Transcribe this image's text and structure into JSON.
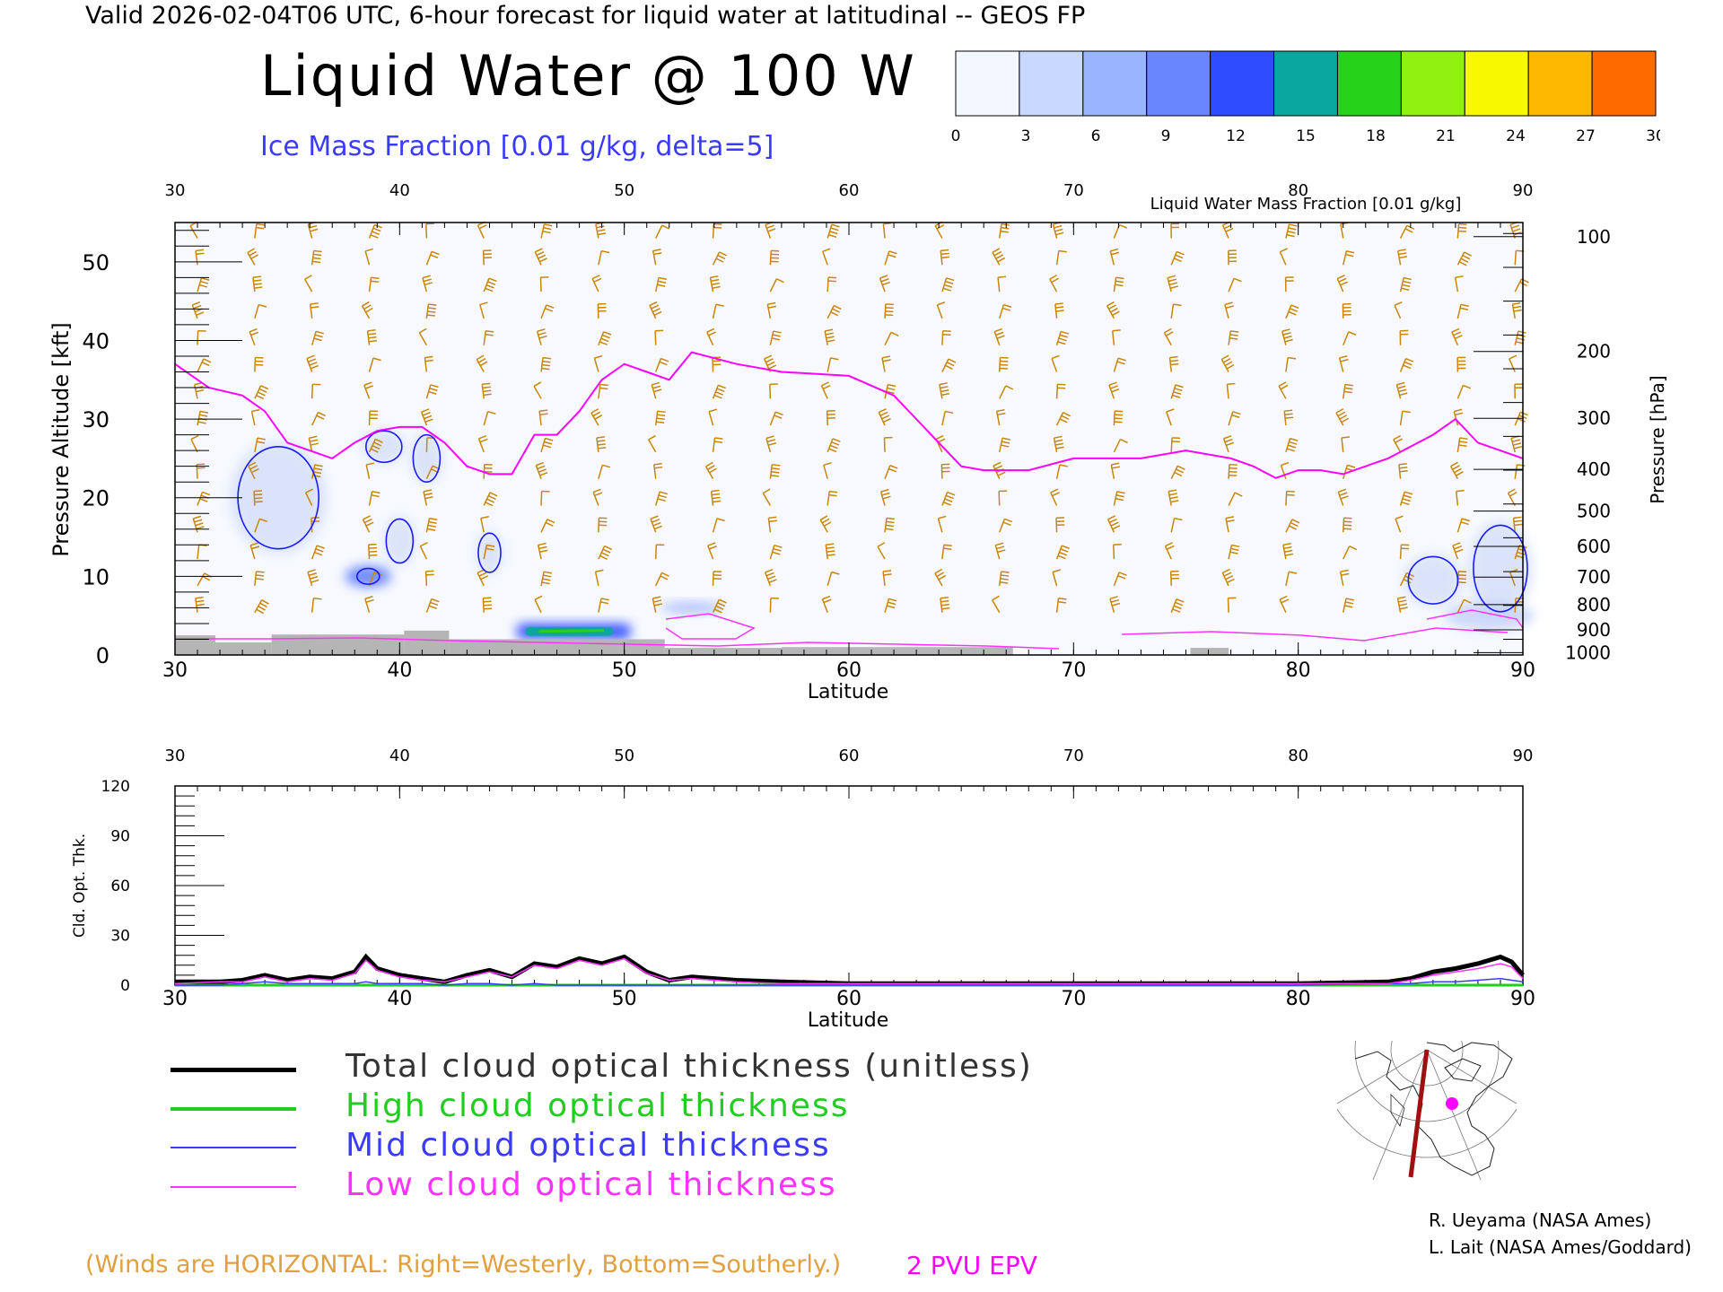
{
  "header": {
    "line": "Valid 2026-02-04T06 UTC, 6-hour forecast for liquid water at latitudinal -- GEOS FP",
    "title": "Liquid Water @ 100 W",
    "ice_note": "Ice Mass Fraction [0.01 g/kg, delta=5]"
  },
  "colorbar": {
    "ticks": [
      "0",
      "3",
      "6",
      "9",
      "12",
      "15",
      "18",
      "21",
      "24",
      "27",
      "30"
    ],
    "colors": [
      "#f4f7ff",
      "#c8d8ff",
      "#9ab4ff",
      "#6a86ff",
      "#2f4cff",
      "#0aa6a0",
      "#27d21a",
      "#90f010",
      "#f8f800",
      "#ffb800",
      "#ff6a00"
    ],
    "label": "Liquid Water Mass Fraction [0.01 g/kg]"
  },
  "chart_data": [
    {
      "type": "heatmap",
      "xlabel": "Latitude",
      "ylabel": "Pressure Altitude [kft]",
      "y2label": "Pressure [hPa]",
      "xlim": [
        30,
        90
      ],
      "ylim": [
        0,
        55
      ],
      "x_ticks": [
        "30",
        "40",
        "50",
        "60",
        "70",
        "80",
        "90"
      ],
      "y_ticks": [
        "0",
        "10",
        "20",
        "30",
        "40",
        "50"
      ],
      "pressure_ticks": [
        {
          "label": "100",
          "kft": 53.2
        },
        {
          "label": "200",
          "kft": 38.6
        },
        {
          "label": "300",
          "kft": 30.1
        },
        {
          "label": "400",
          "kft": 23.6
        },
        {
          "label": "500",
          "kft": 18.3
        },
        {
          "label": "600",
          "kft": 13.8
        },
        {
          "label": "700",
          "kft": 9.9
        },
        {
          "label": "800",
          "kft": 6.4
        },
        {
          "label": "900",
          "kft": 3.2
        },
        {
          "label": "1000",
          "kft": 0.3
        }
      ],
      "liquid_water_band": {
        "lat_start": 45.2,
        "lat_end": 50.3,
        "kft_center": 3.0
      },
      "ice_contours": [
        {
          "lat": 34.6,
          "kft": 20,
          "rlat": 1.8,
          "rkft": 6.5
        },
        {
          "lat": 39.3,
          "kft": 26.5,
          "rlat": 0.8,
          "rkft": 2.0
        },
        {
          "lat": 41.2,
          "kft": 25,
          "rlat": 0.6,
          "rkft": 3.0
        },
        {
          "lat": 40.0,
          "kft": 14.5,
          "rlat": 0.6,
          "rkft": 2.8
        },
        {
          "lat": 44.0,
          "kft": 13,
          "rlat": 0.5,
          "rkft": 2.5
        },
        {
          "lat": 38.6,
          "kft": 10,
          "rlat": 0.5,
          "rkft": 1.0
        },
        {
          "lat": 86.0,
          "kft": 9.5,
          "rlat": 1.1,
          "rkft": 3.0
        },
        {
          "lat": 89.0,
          "kft": 11,
          "rlat": 1.2,
          "rkft": 5.5
        }
      ],
      "epv_2pvu": {
        "lat": [
          30,
          31.5,
          33,
          34,
          35,
          37,
          38,
          39,
          40,
          41,
          42,
          43,
          44,
          45,
          46,
          47,
          48,
          49,
          50,
          51,
          52,
          53,
          55,
          57,
          60,
          62,
          64,
          65,
          66,
          68,
          70,
          73,
          75,
          77,
          78,
          79,
          80,
          81,
          82,
          84,
          86,
          87,
          88,
          90
        ],
        "kft": [
          37,
          34,
          33,
          31,
          27,
          25,
          27,
          28.5,
          29,
          29,
          27,
          24,
          23,
          23,
          28,
          28,
          31,
          35,
          37,
          36,
          35,
          38.5,
          37,
          36,
          35.5,
          33,
          27,
          24,
          23.5,
          23.5,
          25,
          25,
          26,
          25,
          24,
          22.5,
          23.5,
          23.5,
          23,
          25,
          28,
          30,
          27,
          25
        ]
      },
      "surface_blocks": [
        {
          "lat_start": 30,
          "lat_end": 31.8,
          "kft": 2.5
        },
        {
          "lat_start": 31.8,
          "lat_end": 34.3,
          "kft": 1.6
        },
        {
          "lat_start": 34.3,
          "lat_end": 40.2,
          "kft": 2.6
        },
        {
          "lat_start": 40.2,
          "lat_end": 42.2,
          "kft": 3.1
        },
        {
          "lat_start": 42.2,
          "lat_end": 51.8,
          "kft": 2.0
        },
        {
          "lat_start": 51.8,
          "lat_end": 57.0,
          "kft": 0.9
        },
        {
          "lat_start": 57.0,
          "lat_end": 67.3,
          "kft": 1.0
        },
        {
          "lat_start": 75.2,
          "lat_end": 76.9,
          "kft": 0.9
        }
      ],
      "wind_barbs": "orange barbs on regular grid"
    },
    {
      "type": "line",
      "xlabel": "Latitude",
      "ylabel": "Cld. Opt. Thk.",
      "xlim": [
        30,
        90
      ],
      "ylim": [
        0,
        120
      ],
      "x_ticks": [
        "30",
        "40",
        "50",
        "60",
        "70",
        "80",
        "90"
      ],
      "y_ticks": [
        "0",
        "30",
        "60",
        "90",
        "120"
      ],
      "x": [
        30,
        32,
        33,
        34,
        35,
        36,
        37,
        38,
        38.5,
        39,
        40,
        41,
        42,
        43,
        44,
        45,
        46,
        47,
        48,
        49,
        50,
        51,
        52,
        53,
        55,
        57,
        60,
        65,
        70,
        75,
        80,
        84,
        85,
        86,
        87,
        88,
        89,
        89.5,
        90
      ],
      "series": [
        {
          "name": "Total cloud optical thickness (unitless)",
          "values": [
            2,
            2,
            3,
            6,
            3,
            5,
            4,
            8,
            17,
            10,
            6,
            4,
            2,
            6,
            9,
            5,
            13,
            11,
            16,
            13,
            17,
            8,
            3,
            5,
            3,
            2,
            1,
            1,
            1,
            1,
            1,
            2,
            4,
            8,
            10,
            13,
            17,
            14,
            6
          ]
        },
        {
          "name": "High cloud optical thickness",
          "values": [
            0,
            0,
            0,
            0,
            0,
            0,
            0,
            0,
            0,
            0,
            0,
            0,
            0,
            0,
            0,
            0,
            0,
            0,
            0,
            0,
            0,
            0,
            0,
            0,
            0,
            0,
            0,
            0,
            0,
            0,
            0,
            0,
            0,
            0,
            0,
            0,
            0,
            0,
            0
          ]
        },
        {
          "name": "Mid cloud optical thickness",
          "values": [
            0,
            0,
            1,
            2,
            1,
            1,
            1,
            1,
            2,
            1,
            1,
            1,
            0,
            1,
            1,
            0,
            1,
            0,
            0,
            0,
            0,
            0,
            0,
            0,
            0,
            0,
            0,
            0,
            0,
            0,
            0,
            1,
            1,
            2,
            2,
            3,
            4,
            3,
            2
          ]
        },
        {
          "name": "Low cloud optical thickness",
          "values": [
            1,
            2,
            2,
            5,
            2,
            4,
            3,
            7,
            15,
            9,
            5,
            3,
            2,
            5,
            8,
            5,
            12,
            10,
            15,
            12,
            16,
            7,
            3,
            4,
            2,
            1,
            1,
            1,
            1,
            1,
            1,
            1,
            3,
            6,
            8,
            10,
            13,
            11,
            4
          ]
        }
      ]
    }
  ],
  "legend": {
    "items": [
      {
        "label": "Total cloud optical thickness (unitless)",
        "color": "#000000"
      },
      {
        "label": "High cloud optical thickness",
        "color": "#22cc22"
      },
      {
        "label": "Mid cloud optical thickness",
        "color": "#3b3bff"
      },
      {
        "label": "Low cloud optical thickness",
        "color": "#ff33ff"
      }
    ]
  },
  "footer": {
    "winds_note": "(Winds are HORIZONTAL: Right=Westerly, Bottom=Southerly.)",
    "pvu_note": "2 PVU EPV",
    "credit1": "R. Ueyama (NASA Ames)",
    "credit2": "L. Lait (NASA Ames/Goddard)"
  }
}
